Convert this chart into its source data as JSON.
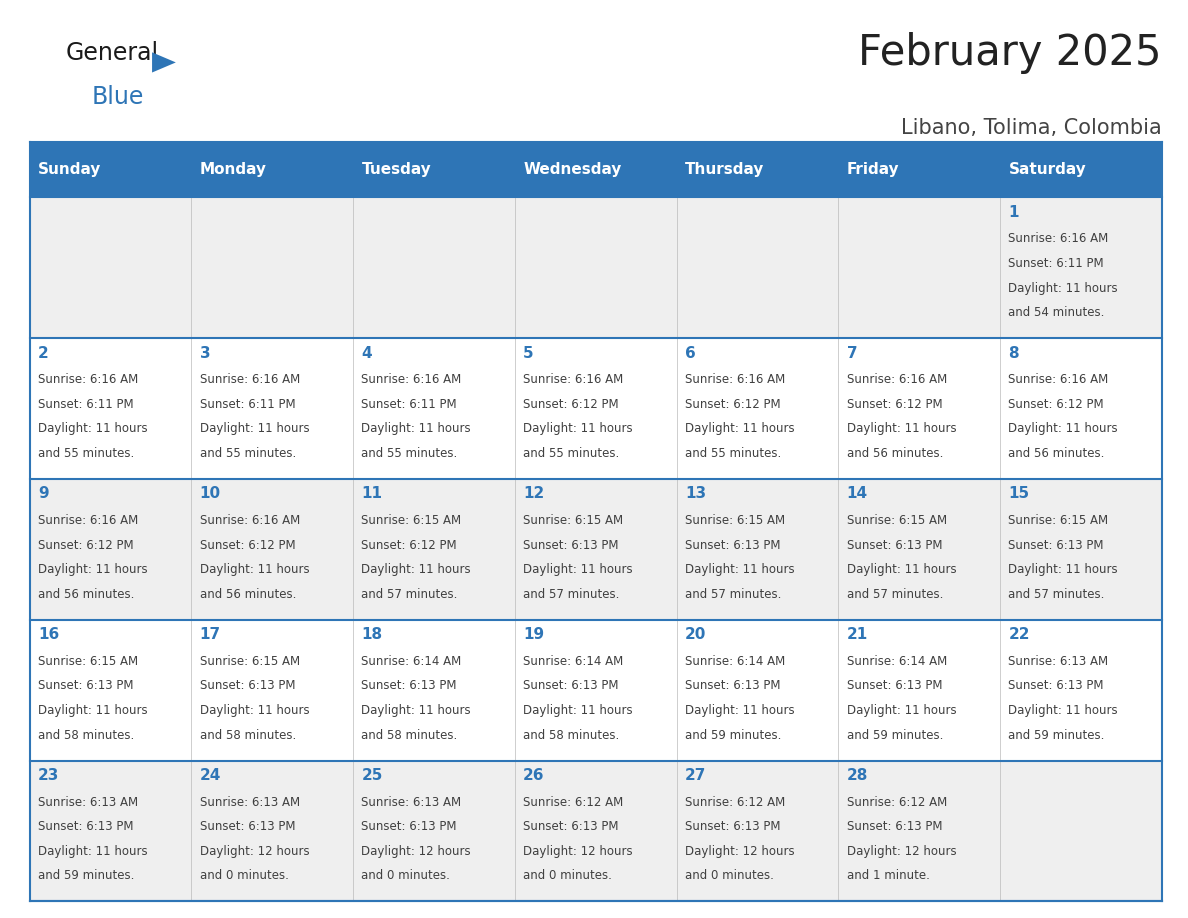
{
  "title": "February 2025",
  "subtitle": "Libano, Tolima, Colombia",
  "days_of_week": [
    "Sunday",
    "Monday",
    "Tuesday",
    "Wednesday",
    "Thursday",
    "Friday",
    "Saturday"
  ],
  "header_bg_color": "#2E75B6",
  "header_text_color": "#FFFFFF",
  "cell_bg_row0": "#EFEFEF",
  "cell_bg_row1": "#FFFFFF",
  "cell_bg_row2": "#EFEFEF",
  "cell_bg_row3": "#FFFFFF",
  "cell_bg_row4": "#EFEFEF",
  "grid_line_color": "#2E75B6",
  "day_number_color": "#2E75B6",
  "cell_text_color": "#404040",
  "title_color": "#222222",
  "subtitle_color": "#444444",
  "logo_general_color": "#1a1a1a",
  "logo_blue_color": "#2E75B6",
  "calendar_data": [
    {
      "day": 1,
      "col": 6,
      "row": 0,
      "sunrise": "6:16 AM",
      "sunset": "6:11 PM",
      "daylight": "11 hours",
      "daylight2": "and 54 minutes."
    },
    {
      "day": 2,
      "col": 0,
      "row": 1,
      "sunrise": "6:16 AM",
      "sunset": "6:11 PM",
      "daylight": "11 hours",
      "daylight2": "and 55 minutes."
    },
    {
      "day": 3,
      "col": 1,
      "row": 1,
      "sunrise": "6:16 AM",
      "sunset": "6:11 PM",
      "daylight": "11 hours",
      "daylight2": "and 55 minutes."
    },
    {
      "day": 4,
      "col": 2,
      "row": 1,
      "sunrise": "6:16 AM",
      "sunset": "6:11 PM",
      "daylight": "11 hours",
      "daylight2": "and 55 minutes."
    },
    {
      "day": 5,
      "col": 3,
      "row": 1,
      "sunrise": "6:16 AM",
      "sunset": "6:12 PM",
      "daylight": "11 hours",
      "daylight2": "and 55 minutes."
    },
    {
      "day": 6,
      "col": 4,
      "row": 1,
      "sunrise": "6:16 AM",
      "sunset": "6:12 PM",
      "daylight": "11 hours",
      "daylight2": "and 55 minutes."
    },
    {
      "day": 7,
      "col": 5,
      "row": 1,
      "sunrise": "6:16 AM",
      "sunset": "6:12 PM",
      "daylight": "11 hours",
      "daylight2": "and 56 minutes."
    },
    {
      "day": 8,
      "col": 6,
      "row": 1,
      "sunrise": "6:16 AM",
      "sunset": "6:12 PM",
      "daylight": "11 hours",
      "daylight2": "and 56 minutes."
    },
    {
      "day": 9,
      "col": 0,
      "row": 2,
      "sunrise": "6:16 AM",
      "sunset": "6:12 PM",
      "daylight": "11 hours",
      "daylight2": "and 56 minutes."
    },
    {
      "day": 10,
      "col": 1,
      "row": 2,
      "sunrise": "6:16 AM",
      "sunset": "6:12 PM",
      "daylight": "11 hours",
      "daylight2": "and 56 minutes."
    },
    {
      "day": 11,
      "col": 2,
      "row": 2,
      "sunrise": "6:15 AM",
      "sunset": "6:12 PM",
      "daylight": "11 hours",
      "daylight2": "and 57 minutes."
    },
    {
      "day": 12,
      "col": 3,
      "row": 2,
      "sunrise": "6:15 AM",
      "sunset": "6:13 PM",
      "daylight": "11 hours",
      "daylight2": "and 57 minutes."
    },
    {
      "day": 13,
      "col": 4,
      "row": 2,
      "sunrise": "6:15 AM",
      "sunset": "6:13 PM",
      "daylight": "11 hours",
      "daylight2": "and 57 minutes."
    },
    {
      "day": 14,
      "col": 5,
      "row": 2,
      "sunrise": "6:15 AM",
      "sunset": "6:13 PM",
      "daylight": "11 hours",
      "daylight2": "and 57 minutes."
    },
    {
      "day": 15,
      "col": 6,
      "row": 2,
      "sunrise": "6:15 AM",
      "sunset": "6:13 PM",
      "daylight": "11 hours",
      "daylight2": "and 57 minutes."
    },
    {
      "day": 16,
      "col": 0,
      "row": 3,
      "sunrise": "6:15 AM",
      "sunset": "6:13 PM",
      "daylight": "11 hours",
      "daylight2": "and 58 minutes."
    },
    {
      "day": 17,
      "col": 1,
      "row": 3,
      "sunrise": "6:15 AM",
      "sunset": "6:13 PM",
      "daylight": "11 hours",
      "daylight2": "and 58 minutes."
    },
    {
      "day": 18,
      "col": 2,
      "row": 3,
      "sunrise": "6:14 AM",
      "sunset": "6:13 PM",
      "daylight": "11 hours",
      "daylight2": "and 58 minutes."
    },
    {
      "day": 19,
      "col": 3,
      "row": 3,
      "sunrise": "6:14 AM",
      "sunset": "6:13 PM",
      "daylight": "11 hours",
      "daylight2": "and 58 minutes."
    },
    {
      "day": 20,
      "col": 4,
      "row": 3,
      "sunrise": "6:14 AM",
      "sunset": "6:13 PM",
      "daylight": "11 hours",
      "daylight2": "and 59 minutes."
    },
    {
      "day": 21,
      "col": 5,
      "row": 3,
      "sunrise": "6:14 AM",
      "sunset": "6:13 PM",
      "daylight": "11 hours",
      "daylight2": "and 59 minutes."
    },
    {
      "day": 22,
      "col": 6,
      "row": 3,
      "sunrise": "6:13 AM",
      "sunset": "6:13 PM",
      "daylight": "11 hours",
      "daylight2": "and 59 minutes."
    },
    {
      "day": 23,
      "col": 0,
      "row": 4,
      "sunrise": "6:13 AM",
      "sunset": "6:13 PM",
      "daylight": "11 hours",
      "daylight2": "and 59 minutes."
    },
    {
      "day": 24,
      "col": 1,
      "row": 4,
      "sunrise": "6:13 AM",
      "sunset": "6:13 PM",
      "daylight": "12 hours",
      "daylight2": "and 0 minutes."
    },
    {
      "day": 25,
      "col": 2,
      "row": 4,
      "sunrise": "6:13 AM",
      "sunset": "6:13 PM",
      "daylight": "12 hours",
      "daylight2": "and 0 minutes."
    },
    {
      "day": 26,
      "col": 3,
      "row": 4,
      "sunrise": "6:12 AM",
      "sunset": "6:13 PM",
      "daylight": "12 hours",
      "daylight2": "and 0 minutes."
    },
    {
      "day": 27,
      "col": 4,
      "row": 4,
      "sunrise": "6:12 AM",
      "sunset": "6:13 PM",
      "daylight": "12 hours",
      "daylight2": "and 0 minutes."
    },
    {
      "day": 28,
      "col": 5,
      "row": 4,
      "sunrise": "6:12 AM",
      "sunset": "6:13 PM",
      "daylight": "12 hours",
      "daylight2": "and 1 minute."
    }
  ],
  "num_rows": 5,
  "num_cols": 7,
  "header_fontsize": 11,
  "day_num_fontsize": 11,
  "cell_fontsize": 8.5,
  "title_fontsize": 30,
  "subtitle_fontsize": 15
}
